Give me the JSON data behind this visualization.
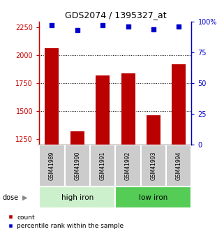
{
  "title": "GDS2074 / 1395327_at",
  "samples": [
    "GSM41989",
    "GSM41990",
    "GSM41991",
    "GSM41992",
    "GSM41993",
    "GSM41994"
  ],
  "bar_values": [
    2060,
    1320,
    1820,
    1840,
    1460,
    1920
  ],
  "percentile_values": [
    97,
    93,
    97,
    96,
    94,
    96
  ],
  "groups": [
    {
      "label": "high iron",
      "indices": [
        0,
        1,
        2
      ],
      "color": "#ccf0cc"
    },
    {
      "label": "low iron",
      "indices": [
        3,
        4,
        5
      ],
      "color": "#55cc55"
    }
  ],
  "bar_color": "#bb0000",
  "dot_color": "#0000cc",
  "bar_width": 0.55,
  "ylim_left": [
    1200,
    2300
  ],
  "ylim_right": [
    0,
    100
  ],
  "yticks_left": [
    1250,
    1500,
    1750,
    2000,
    2250
  ],
  "yticks_right": [
    0,
    25,
    50,
    75,
    100
  ],
  "grid_values": [
    2000,
    1750,
    1500
  ],
  "left_axis_color": "#cc0000",
  "right_axis_color": "#0000cc",
  "legend_count_label": "count",
  "legend_pct_label": "percentile rank within the sample",
  "dose_label": "dose",
  "bg_color": "#ffffff",
  "label_box_color": "#cccccc",
  "label_divider_color": "#ffffff"
}
